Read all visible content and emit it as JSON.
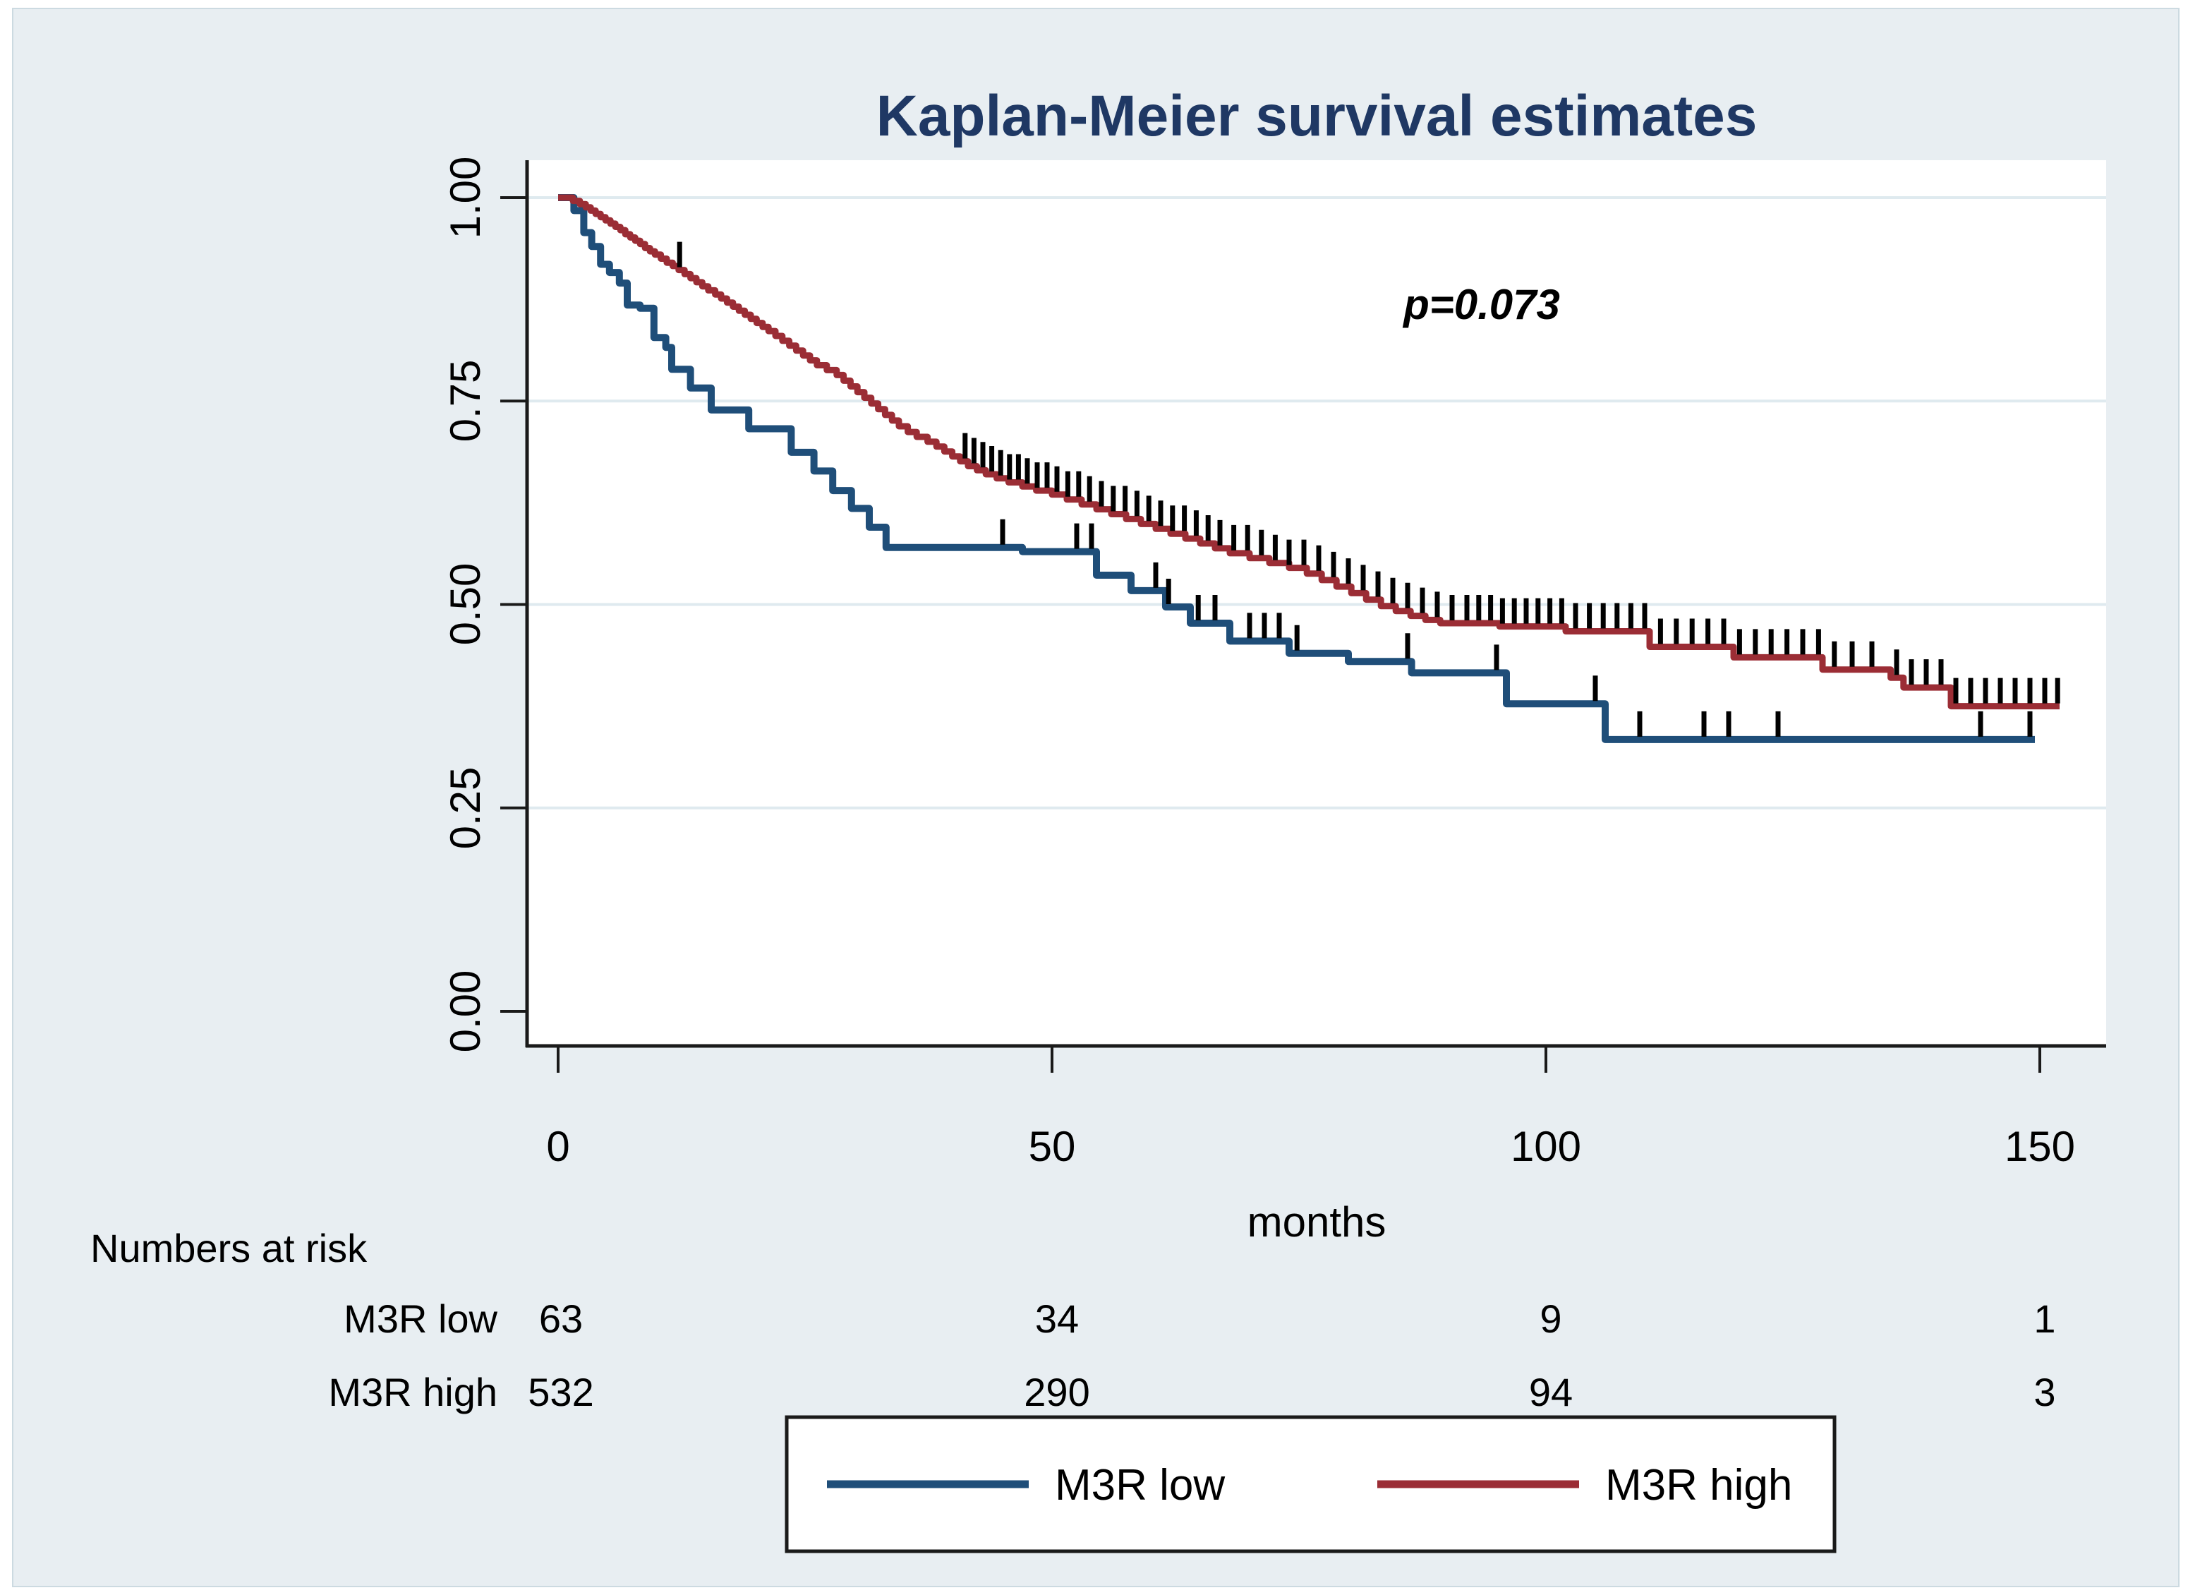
{
  "page": {
    "background": "#ffffff",
    "panel_color": "#e8eef2",
    "plot_background": "#ffffff",
    "grid_color": "#dfeaef",
    "axis_color": "#1a1a1a",
    "censor_tick_color": "#000000",
    "title_color": "#1f3864"
  },
  "chart_data": {
    "type": "line",
    "subtype": "kaplan-meier-step",
    "title": "Kaplan-Meier survival estimates",
    "xlabel": "months",
    "ylabel": "",
    "annotation": "p=0.073",
    "xlim": [
      0,
      155
    ],
    "ylim": [
      0,
      1.0
    ],
    "grid": "horizontal",
    "legend_position": "bottom",
    "x_tick_values": [
      0,
      50,
      100,
      150
    ],
    "x_tick_labels": [
      "0",
      "50",
      "100",
      "150"
    ],
    "y_tick_values": [
      0,
      0.25,
      0.5,
      0.75,
      1.0
    ],
    "y_ticks": [
      "0.00",
      "0.25",
      "0.50",
      "0.75",
      "1.00"
    ],
    "series": [
      {
        "name": "M3R low",
        "color": "#1f4e79",
        "stroke_width": 10,
        "start_value": 1.0,
        "end_month": 149.5,
        "steps": [
          [
            1.6,
            0.984
          ],
          [
            2.6,
            0.957
          ],
          [
            3.4,
            0.94
          ],
          [
            4.3,
            0.918
          ],
          [
            5.2,
            0.908
          ],
          [
            6.2,
            0.895
          ],
          [
            7,
            0.868
          ],
          [
            8.3,
            0.864
          ],
          [
            9.7,
            0.828
          ],
          [
            10.9,
            0.816
          ],
          [
            11.5,
            0.789
          ],
          [
            13.4,
            0.766
          ],
          [
            15.5,
            0.739
          ],
          [
            19.3,
            0.716
          ],
          [
            23.6,
            0.687
          ],
          [
            25.9,
            0.664
          ],
          [
            27.8,
            0.64
          ],
          [
            29.7,
            0.618
          ],
          [
            31.5,
            0.595
          ],
          [
            33.2,
            0.57
          ],
          [
            47,
            0.565
          ],
          [
            54.5,
            0.536
          ],
          [
            58,
            0.517
          ],
          [
            61.5,
            0.497
          ],
          [
            64,
            0.477
          ],
          [
            68,
            0.455
          ],
          [
            74,
            0.44
          ],
          [
            80,
            0.43
          ],
          [
            86.4,
            0.416
          ],
          [
            96,
            0.378
          ],
          [
            106,
            0.334
          ]
        ],
        "censor_months": [
          45,
          52.5,
          54,
          60.5,
          61.8,
          64.8,
          66.5,
          70,
          71.5,
          73,
          74.8,
          86,
          95,
          105,
          109.5,
          116,
          118.5,
          123.5,
          144,
          149
        ]
      },
      {
        "name": "M3R high",
        "color": "#9b2d35",
        "stroke_width": 9,
        "start_value": 1.0,
        "end_month": 152,
        "steps": [
          [
            1.5,
            0.996
          ],
          [
            2.2,
            0.992
          ],
          [
            2.8,
            0.988
          ],
          [
            3.3,
            0.984
          ],
          [
            3.8,
            0.98
          ],
          [
            4.3,
            0.976
          ],
          [
            4.8,
            0.972
          ],
          [
            5.3,
            0.968
          ],
          [
            5.8,
            0.964
          ],
          [
            6.3,
            0.96
          ],
          [
            6.8,
            0.955
          ],
          [
            7.3,
            0.951
          ],
          [
            7.8,
            0.947
          ],
          [
            8.3,
            0.943
          ],
          [
            8.8,
            0.938
          ],
          [
            9.3,
            0.934
          ],
          [
            9.8,
            0.93
          ],
          [
            10.4,
            0.925
          ],
          [
            11,
            0.92
          ],
          [
            11.6,
            0.916
          ],
          [
            12.2,
            0.911
          ],
          [
            12.8,
            0.906
          ],
          [
            13.4,
            0.901
          ],
          [
            14,
            0.896
          ],
          [
            14.6,
            0.891
          ],
          [
            15.2,
            0.886
          ],
          [
            15.9,
            0.881
          ],
          [
            16.5,
            0.876
          ],
          [
            17.1,
            0.871
          ],
          [
            17.7,
            0.866
          ],
          [
            18.3,
            0.861
          ],
          [
            18.9,
            0.856
          ],
          [
            19.5,
            0.851
          ],
          [
            20.1,
            0.846
          ],
          [
            20.7,
            0.841
          ],
          [
            21.3,
            0.836
          ],
          [
            22,
            0.83
          ],
          [
            22.7,
            0.824
          ],
          [
            23.4,
            0.818
          ],
          [
            24.1,
            0.812
          ],
          [
            24.8,
            0.806
          ],
          [
            25.5,
            0.8
          ],
          [
            26.2,
            0.794
          ],
          [
            27.2,
            0.788
          ],
          [
            28.2,
            0.782
          ],
          [
            28.9,
            0.775
          ],
          [
            29.6,
            0.768
          ],
          [
            30.3,
            0.761
          ],
          [
            31,
            0.754
          ],
          [
            31.7,
            0.747
          ],
          [
            32.4,
            0.74
          ],
          [
            33.1,
            0.733
          ],
          [
            33.8,
            0.726
          ],
          [
            34.5,
            0.719
          ],
          [
            35.4,
            0.712
          ],
          [
            36.3,
            0.706
          ],
          [
            37.4,
            0.7
          ],
          [
            38.3,
            0.694
          ],
          [
            39.1,
            0.688
          ],
          [
            39.9,
            0.682
          ],
          [
            40.7,
            0.676
          ],
          [
            41.5,
            0.67
          ],
          [
            42.4,
            0.665
          ],
          [
            43.3,
            0.66
          ],
          [
            44.4,
            0.655
          ],
          [
            45.6,
            0.65
          ],
          [
            47,
            0.645
          ],
          [
            48.4,
            0.64
          ],
          [
            50,
            0.635
          ],
          [
            51.5,
            0.629
          ],
          [
            53,
            0.623
          ],
          [
            54.5,
            0.617
          ],
          [
            56,
            0.611
          ],
          [
            57.5,
            0.605
          ],
          [
            59,
            0.599
          ],
          [
            60.5,
            0.593
          ],
          [
            62,
            0.587
          ],
          [
            63.5,
            0.581
          ],
          [
            65,
            0.575
          ],
          [
            66.5,
            0.569
          ],
          [
            68,
            0.563
          ],
          [
            70,
            0.557
          ],
          [
            72,
            0.551
          ],
          [
            74,
            0.545
          ],
          [
            75.8,
            0.538
          ],
          [
            77.3,
            0.53
          ],
          [
            78.8,
            0.522
          ],
          [
            80.3,
            0.514
          ],
          [
            81.8,
            0.506
          ],
          [
            83.3,
            0.498
          ],
          [
            84.8,
            0.492
          ],
          [
            86.3,
            0.486
          ],
          [
            87.8,
            0.481
          ],
          [
            89.3,
            0.477
          ],
          [
            95.3,
            0.473
          ],
          [
            102,
            0.467
          ],
          [
            110.5,
            0.448
          ],
          [
            119,
            0.435
          ],
          [
            128,
            0.42
          ],
          [
            134.9,
            0.41
          ],
          [
            136.2,
            0.398
          ],
          [
            141,
            0.375
          ]
        ],
        "censor_months": [
          12.3,
          41.2,
          42.1,
          43,
          43.9,
          44.8,
          45.7,
          46.6,
          47.5,
          48.5,
          49.5,
          50.5,
          51.6,
          52.7,
          53.8,
          55,
          56.2,
          57.4,
          58.6,
          59.8,
          61,
          62.2,
          63.4,
          64.6,
          65.8,
          67,
          68.4,
          69.8,
          71.2,
          72.6,
          74,
          75.5,
          77,
          78.5,
          80,
          81.5,
          83,
          84.5,
          86,
          87.5,
          89,
          90.5,
          92,
          93.2,
          94.4,
          95.6,
          96.8,
          98,
          99.2,
          100.4,
          101.6,
          103,
          104.4,
          105.8,
          107.2,
          108.6,
          110,
          111.6,
          113.2,
          114.8,
          116.4,
          118,
          119.6,
          121.2,
          122.8,
          124.4,
          126,
          127.6,
          129.2,
          131,
          133,
          135.5,
          137,
          138.5,
          140,
          141.5,
          143,
          144.5,
          146,
          147.5,
          149,
          150.5,
          151.8
        ]
      }
    ]
  },
  "risk_table": {
    "header": "Numbers at risk",
    "columns_months": [
      0,
      50,
      100,
      150
    ],
    "rows": [
      {
        "label": "M3R low",
        "values": [
          "63",
          "34",
          "9",
          "1"
        ]
      },
      {
        "label": "M3R high",
        "values": [
          "532",
          "290",
          "94",
          "3"
        ]
      }
    ]
  },
  "legend": {
    "items": [
      {
        "label": "M3R low",
        "color": "#1f4e79"
      },
      {
        "label": "M3R high",
        "color": "#9b2d35"
      }
    ]
  }
}
